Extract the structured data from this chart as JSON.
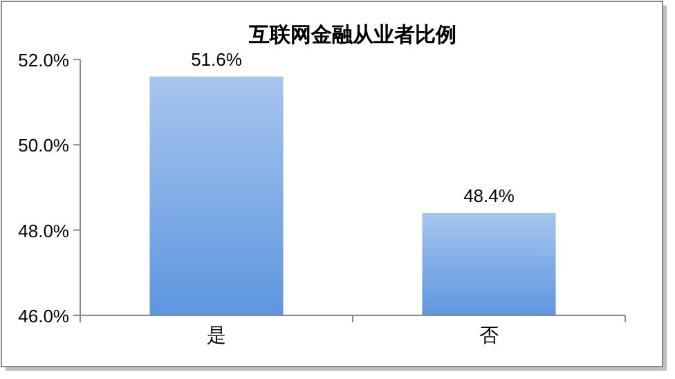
{
  "chart_data": {
    "type": "bar",
    "title": "互联网金融从业者比例",
    "categories": [
      "是",
      "否"
    ],
    "values": [
      51.6,
      48.4
    ],
    "color": "#5e96e0",
    "value_labels": [
      "51.6%",
      "48.4%"
    ],
    "ylim": [
      46,
      52
    ],
    "yticks": [
      {
        "value": 46,
        "label": "46.0%"
      },
      {
        "value": 48,
        "label": "48.0%"
      },
      {
        "value": 50,
        "label": "50.0%"
      },
      {
        "value": 52,
        "label": "52.0%"
      }
    ],
    "grid": false
  }
}
